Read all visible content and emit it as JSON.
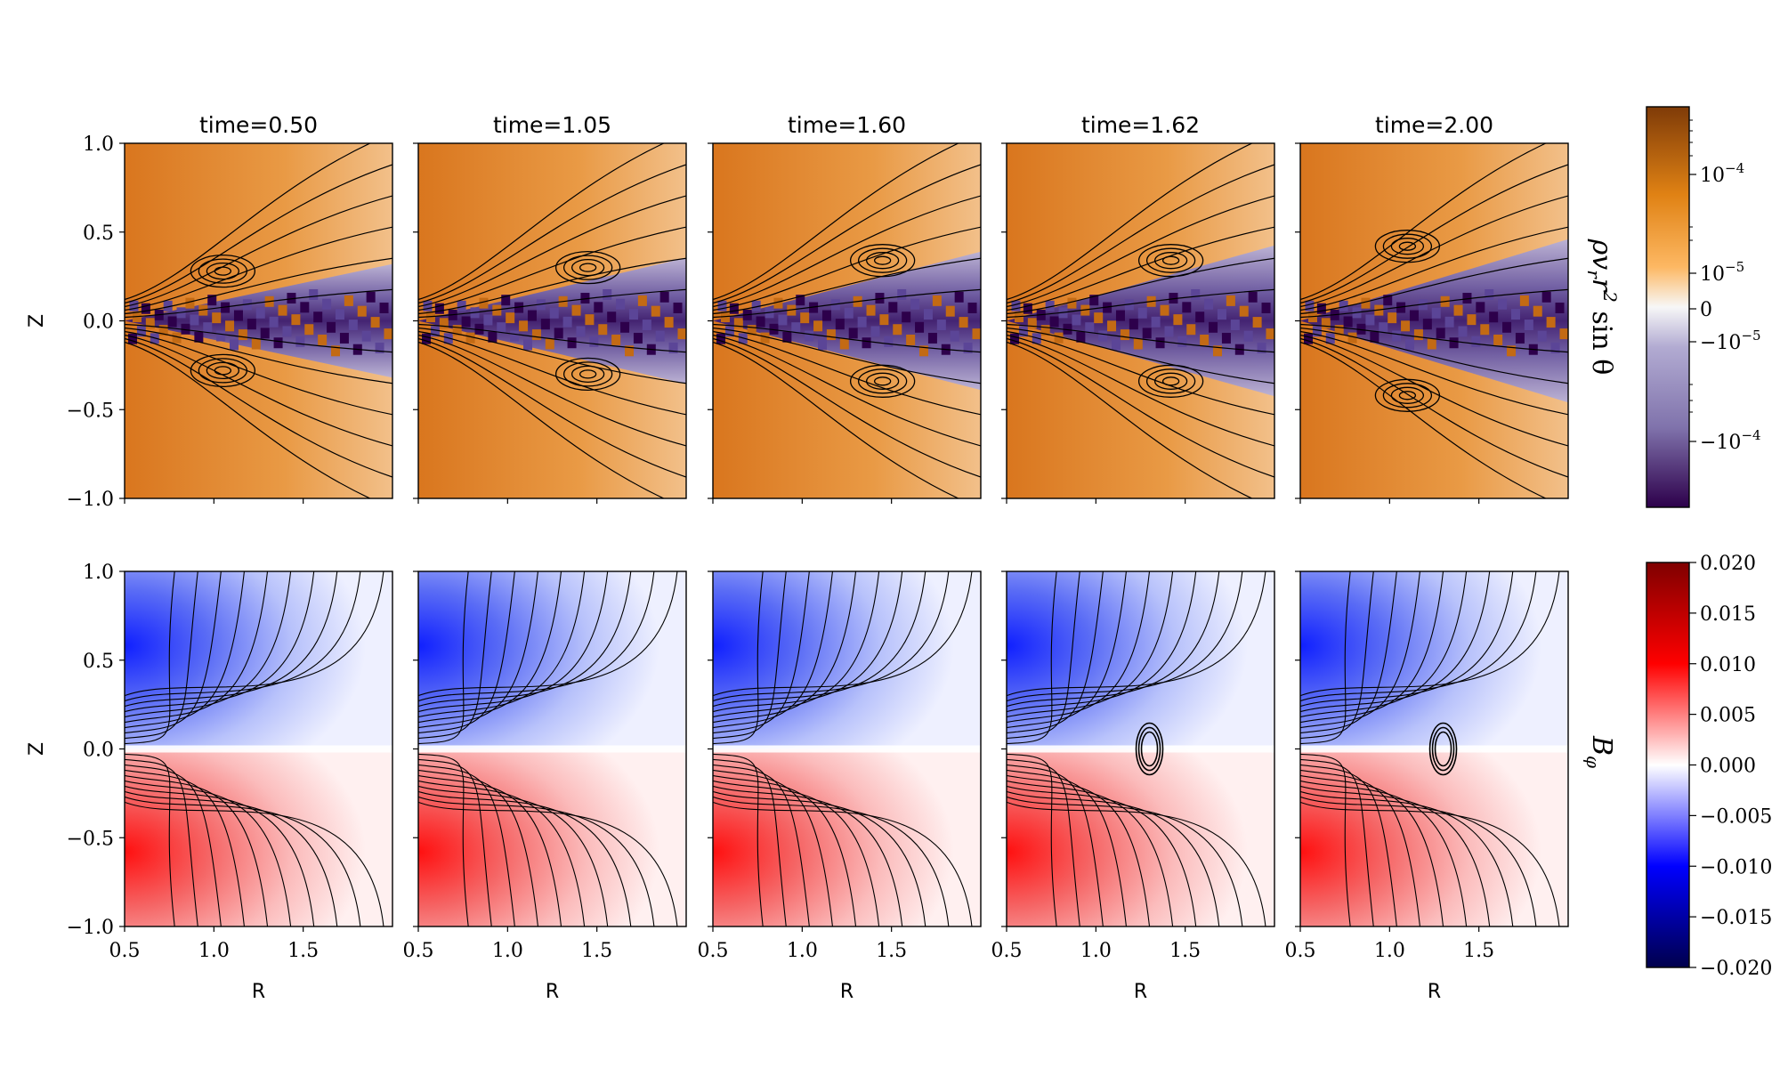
{
  "figure": {
    "rows": [
      {
        "colorbar_label": "ρv_r r² sin θ",
        "colorbar_label_parts": [
          "ρv",
          "r",
          "r",
          "2",
          " sin θ"
        ],
        "colorbar_ticks": [
          "10−4",
          "10−5",
          "0",
          "−10−5",
          "−10−4"
        ],
        "colorbar_tick_base": [
          "10",
          "10",
          "0",
          "−10",
          "−10"
        ],
        "colorbar_tick_exp": [
          "−4",
          "−5",
          "",
          "−5",
          "−4"
        ],
        "colormap": "PuOr (orange positive, purple negative), symlog",
        "colors": {
          "pos_max": "#7f3b08",
          "pos_mid": "#e08214",
          "pos_low": "#fdb863",
          "zero": "#f7f7f7",
          "neg_low": "#b2abd2",
          "neg_mid": "#8073ac",
          "neg_max": "#2d004b"
        }
      },
      {
        "colorbar_label": "B_φ",
        "colorbar_label_parts": [
          "B",
          "φ"
        ],
        "colorbar_ticks": [
          "0.020",
          "0.015",
          "0.010",
          "0.005",
          "0.000",
          "−0.005",
          "−0.010",
          "−0.015",
          "−0.020"
        ],
        "colormap": "seismic",
        "colors": {
          "pos_max": "#7f0000",
          "pos": "#ff0000",
          "zero": "#ffffff",
          "neg": "#0000ff",
          "neg_max": "#00004c"
        }
      }
    ]
  },
  "chart_data": {
    "type": "heatmap",
    "panels_per_row": 5,
    "titles": [
      "time=0.50",
      "time=1.05",
      "time=1.60",
      "time=1.62",
      "time=2.00"
    ],
    "times": [
      0.5,
      1.05,
      1.6,
      1.62,
      2.0
    ],
    "xlabel": "R",
    "ylabel": "Z",
    "xlim": [
      0.5,
      2.0
    ],
    "ylim": [
      -1.0,
      1.0
    ],
    "xticks": [
      "0.5",
      "1.0",
      "1.5"
    ],
    "yticks": [
      "1.0",
      "0.5",
      "0.0",
      "−0.5",
      "−1.0"
    ],
    "overlay": "black field-line contours",
    "top_row": {
      "quantity": "ρv_r r² sin θ",
      "scale": "symlog",
      "colorbar_ticks": [
        "10^-4",
        "10^-5",
        "0",
        "-10^-5",
        "-10^-4"
      ]
    },
    "bottom_row": {
      "quantity": "B_φ",
      "scale": "linear",
      "range": [
        -0.02,
        0.02
      ],
      "colorbar_ticks": [
        0.02,
        0.015,
        0.01,
        0.005,
        0.0,
        -0.005,
        -0.01,
        -0.015,
        -0.02
      ]
    }
  }
}
